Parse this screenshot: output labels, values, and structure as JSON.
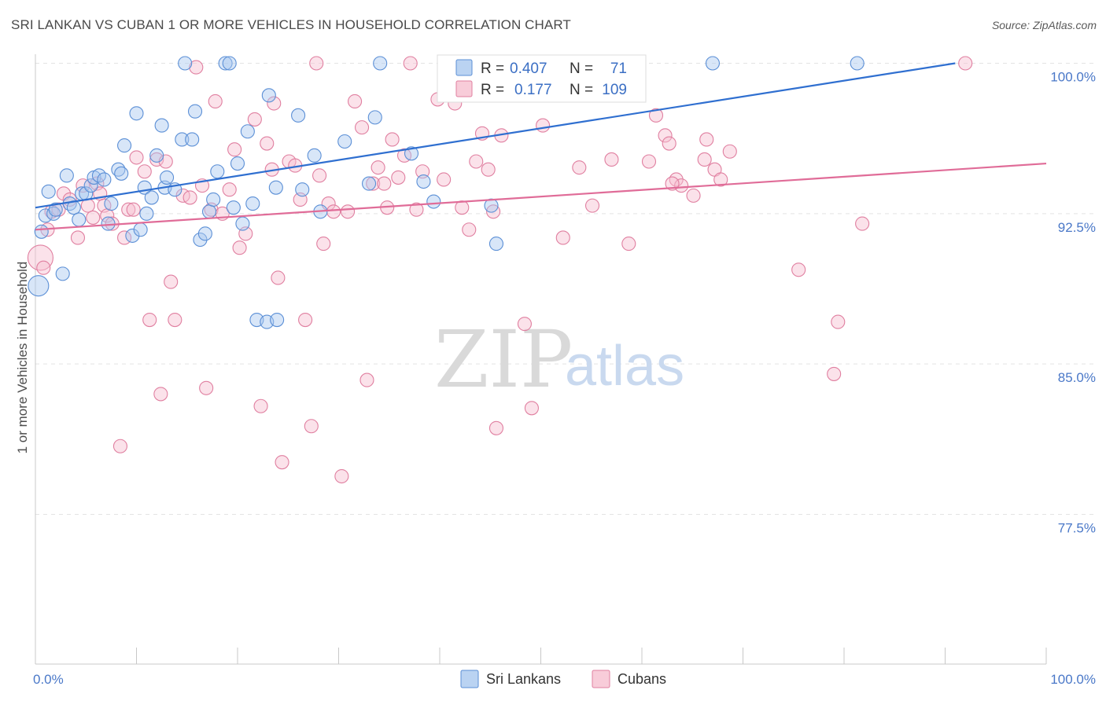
{
  "title": "SRI LANKAN VS CUBAN 1 OR MORE VEHICLES IN HOUSEHOLD CORRELATION CHART",
  "source": "Source: ZipAtlas.com",
  "watermark": {
    "zip": "ZIP",
    "atlas": "atlas"
  },
  "colors": {
    "blue_fill": "#a9c8ef",
    "blue_stroke": "#5b8fd6",
    "blue_line": "#2f6fd0",
    "pink_fill": "#f6bfd0",
    "pink_stroke": "#e07fa0",
    "pink_line": "#e06c98",
    "axis_text": "#4a78c8",
    "grid": "#e3e3e3"
  },
  "legend_box": {
    "rows": [
      {
        "r_label": "R =",
        "r_value": "0.407",
        "n_label": "N =",
        "n_value": "71"
      },
      {
        "r_label": "R =",
        "r_value": "0.177",
        "n_label": "N =",
        "n_value": "109"
      }
    ]
  },
  "bottom_legend": [
    "Sri Lankans",
    "Cubans"
  ],
  "chart_data": {
    "type": "scatter",
    "title": "SRI LANKAN VS CUBAN 1 OR MORE VEHICLES IN HOUSEHOLD CORRELATION CHART",
    "xlabel": "",
    "ylabel": "1 or more Vehicles in Household",
    "xlim": [
      0,
      100
    ],
    "ylim": [
      70,
      100.8
    ],
    "x_tick_labels": [
      "0.0%",
      "100.0%"
    ],
    "y_ticks": [
      77.5,
      85.0,
      92.5,
      100.0
    ],
    "y_tick_labels": [
      "77.5%",
      "85.0%",
      "92.5%",
      "100.0%"
    ],
    "grid": true,
    "legend_position": "top-center",
    "series": [
      {
        "name": "Sri Lankans",
        "r": 0.407,
        "n": 71,
        "trend": {
          "x": [
            0,
            91
          ],
          "y": [
            92.8,
            100.0
          ]
        },
        "points": [
          [
            0.3,
            88.9
          ],
          [
            0.6,
            91.6
          ],
          [
            1.0,
            92.4
          ],
          [
            1.3,
            93.6
          ],
          [
            1.8,
            92.5
          ],
          [
            2.0,
            92.7
          ],
          [
            2.7,
            89.5
          ],
          [
            3.1,
            94.4
          ],
          [
            3.4,
            93.0
          ],
          [
            3.8,
            92.8
          ],
          [
            4.3,
            92.2
          ],
          [
            4.6,
            93.5
          ],
          [
            5.0,
            93.5
          ],
          [
            5.5,
            93.9
          ],
          [
            5.8,
            94.3
          ],
          [
            6.3,
            94.4
          ],
          [
            6.8,
            94.2
          ],
          [
            7.2,
            92.0
          ],
          [
            7.5,
            93.0
          ],
          [
            8.2,
            94.7
          ],
          [
            8.5,
            94.5
          ],
          [
            8.8,
            95.9
          ],
          [
            9.6,
            91.4
          ],
          [
            10.0,
            97.5
          ],
          [
            10.4,
            91.7
          ],
          [
            10.8,
            93.8
          ],
          [
            11.0,
            92.5
          ],
          [
            11.5,
            93.3
          ],
          [
            12.0,
            95.4
          ],
          [
            12.5,
            96.9
          ],
          [
            12.8,
            93.8
          ],
          [
            13.0,
            94.3
          ],
          [
            13.8,
            93.7
          ],
          [
            14.5,
            96.2
          ],
          [
            14.8,
            100.0
          ],
          [
            15.5,
            96.2
          ],
          [
            15.8,
            97.6
          ],
          [
            16.3,
            91.2
          ],
          [
            16.8,
            91.5
          ],
          [
            17.2,
            92.6
          ],
          [
            17.6,
            93.2
          ],
          [
            18.0,
            94.6
          ],
          [
            18.8,
            100.0
          ],
          [
            19.2,
            100.0
          ],
          [
            19.6,
            92.8
          ],
          [
            20.0,
            95.0
          ],
          [
            20.5,
            92.0
          ],
          [
            21.0,
            96.6
          ],
          [
            21.5,
            93.0
          ],
          [
            21.9,
            87.2
          ],
          [
            22.9,
            87.1
          ],
          [
            23.1,
            98.4
          ],
          [
            23.9,
            87.2
          ],
          [
            23.8,
            93.8
          ],
          [
            26.0,
            97.4
          ],
          [
            26.4,
            93.7
          ],
          [
            27.6,
            95.4
          ],
          [
            28.2,
            92.6
          ],
          [
            30.6,
            96.1
          ],
          [
            33.0,
            94.0
          ],
          [
            33.6,
            97.3
          ],
          [
            34.1,
            100.0
          ],
          [
            37.2,
            95.5
          ],
          [
            38.4,
            94.1
          ],
          [
            39.4,
            93.1
          ],
          [
            41.2,
            100.0
          ],
          [
            45.1,
            92.9
          ],
          [
            45.6,
            91.0
          ],
          [
            52.0,
            100.0
          ],
          [
            67.0,
            100.0
          ],
          [
            81.3,
            100.0
          ]
        ]
      },
      {
        "name": "Cubans",
        "r": 0.177,
        "n": 109,
        "trend": {
          "x": [
            0,
            100
          ],
          "y": [
            91.7,
            95.0
          ]
        },
        "points": [
          [
            0.5,
            90.3
          ],
          [
            0.8,
            89.8
          ],
          [
            1.2,
            91.7
          ],
          [
            1.6,
            92.6
          ],
          [
            2.3,
            92.7
          ],
          [
            2.8,
            93.5
          ],
          [
            3.4,
            93.2
          ],
          [
            4.2,
            91.3
          ],
          [
            4.7,
            93.9
          ],
          [
            5.2,
            92.9
          ],
          [
            5.7,
            92.3
          ],
          [
            6.1,
            94.0
          ],
          [
            6.4,
            93.5
          ],
          [
            6.8,
            92.9
          ],
          [
            7.1,
            92.4
          ],
          [
            7.6,
            92.0
          ],
          [
            8.4,
            80.9
          ],
          [
            8.8,
            91.3
          ],
          [
            9.2,
            92.7
          ],
          [
            9.7,
            92.7
          ],
          [
            10.0,
            95.3
          ],
          [
            10.8,
            94.6
          ],
          [
            11.3,
            87.2
          ],
          [
            12.0,
            95.2
          ],
          [
            12.4,
            83.5
          ],
          [
            12.9,
            95.1
          ],
          [
            13.4,
            89.1
          ],
          [
            13.8,
            87.2
          ],
          [
            14.6,
            93.4
          ],
          [
            15.3,
            93.3
          ],
          [
            15.9,
            99.8
          ],
          [
            16.5,
            93.9
          ],
          [
            16.9,
            83.8
          ],
          [
            17.4,
            92.7
          ],
          [
            17.8,
            98.1
          ],
          [
            18.5,
            92.5
          ],
          [
            19.2,
            93.7
          ],
          [
            19.7,
            95.7
          ],
          [
            20.2,
            90.8
          ],
          [
            20.8,
            91.5
          ],
          [
            21.7,
            97.2
          ],
          [
            22.3,
            82.9
          ],
          [
            22.9,
            96.0
          ],
          [
            23.4,
            94.7
          ],
          [
            23.6,
            98.0
          ],
          [
            24.0,
            89.3
          ],
          [
            24.4,
            80.1
          ],
          [
            25.1,
            95.1
          ],
          [
            25.7,
            94.9
          ],
          [
            26.2,
            93.2
          ],
          [
            26.7,
            87.2
          ],
          [
            27.3,
            81.9
          ],
          [
            27.8,
            100.0
          ],
          [
            28.1,
            94.4
          ],
          [
            28.5,
            91.0
          ],
          [
            29.0,
            93.0
          ],
          [
            29.5,
            92.6
          ],
          [
            30.3,
            79.4
          ],
          [
            30.9,
            92.6
          ],
          [
            31.6,
            98.1
          ],
          [
            32.3,
            96.8
          ],
          [
            32.8,
            84.2
          ],
          [
            33.4,
            94.0
          ],
          [
            33.9,
            94.8
          ],
          [
            34.5,
            94.0
          ],
          [
            34.8,
            92.8
          ],
          [
            35.3,
            96.2
          ],
          [
            35.9,
            94.3
          ],
          [
            36.5,
            95.4
          ],
          [
            37.7,
            92.7
          ],
          [
            37.1,
            100.0
          ],
          [
            38.3,
            94.6
          ],
          [
            39.8,
            98.2
          ],
          [
            40.4,
            94.2
          ],
          [
            41.5,
            98.0
          ],
          [
            42.2,
            92.8
          ],
          [
            42.9,
            91.7
          ],
          [
            43.6,
            95.1
          ],
          [
            44.2,
            96.5
          ],
          [
            44.8,
            94.7
          ],
          [
            45.3,
            92.6
          ],
          [
            45.6,
            81.8
          ],
          [
            46.1,
            96.4
          ],
          [
            48.4,
            87.0
          ],
          [
            49.1,
            82.8
          ],
          [
            50.2,
            96.9
          ],
          [
            52.2,
            91.3
          ],
          [
            53.8,
            94.8
          ],
          [
            55.1,
            92.9
          ],
          [
            57.0,
            95.2
          ],
          [
            58.7,
            91.0
          ],
          [
            60.7,
            95.1
          ],
          [
            61.4,
            97.4
          ],
          [
            62.3,
            96.4
          ],
          [
            62.7,
            96.0
          ],
          [
            63.4,
            94.2
          ],
          [
            63.9,
            93.9
          ],
          [
            65.1,
            93.4
          ],
          [
            66.2,
            95.2
          ],
          [
            66.4,
            96.2
          ],
          [
            67.2,
            94.7
          ],
          [
            67.8,
            94.2
          ],
          [
            68.7,
            95.6
          ],
          [
            75.5,
            89.7
          ],
          [
            79.4,
            87.1
          ],
          [
            79.0,
            84.5
          ],
          [
            81.8,
            92.0
          ],
          [
            92.0,
            100.0
          ],
          [
            63.0,
            94.0
          ]
        ]
      }
    ]
  }
}
